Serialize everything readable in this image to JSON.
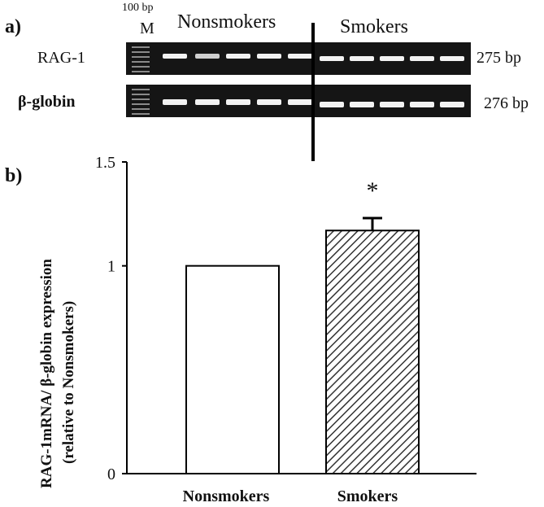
{
  "panel_a": {
    "label": "a)",
    "ladder_size": "100 bp",
    "marker_lane": "M",
    "group_left": "Nonsmokers",
    "group_right": "Smokers",
    "rows": [
      {
        "name": "RAG-1",
        "size": "275 bp",
        "bold": false
      },
      {
        "name": "β-globin",
        "size": "276 bp",
        "bold": true
      }
    ]
  },
  "panel_b": {
    "label": "b)"
  },
  "chart_data": {
    "type": "bar",
    "categories": [
      "Nonsmokers",
      "Smokers"
    ],
    "values": [
      1.0,
      1.17
    ],
    "errors": [
      0,
      0.06
    ],
    "significance": [
      "",
      "*"
    ],
    "bar_fills": [
      "white",
      "diagonal-hatch"
    ],
    "ylabel_line1": "RAG-1mRNA/ β-globin expression",
    "ylabel_line2": "(relative to Nonsmokers)",
    "ylim": [
      0,
      1.5
    ],
    "yticks": [
      "0",
      "1",
      "1.5"
    ],
    "ytick_values": [
      0,
      1,
      1.5
    ],
    "grid": false,
    "legend": "none"
  }
}
